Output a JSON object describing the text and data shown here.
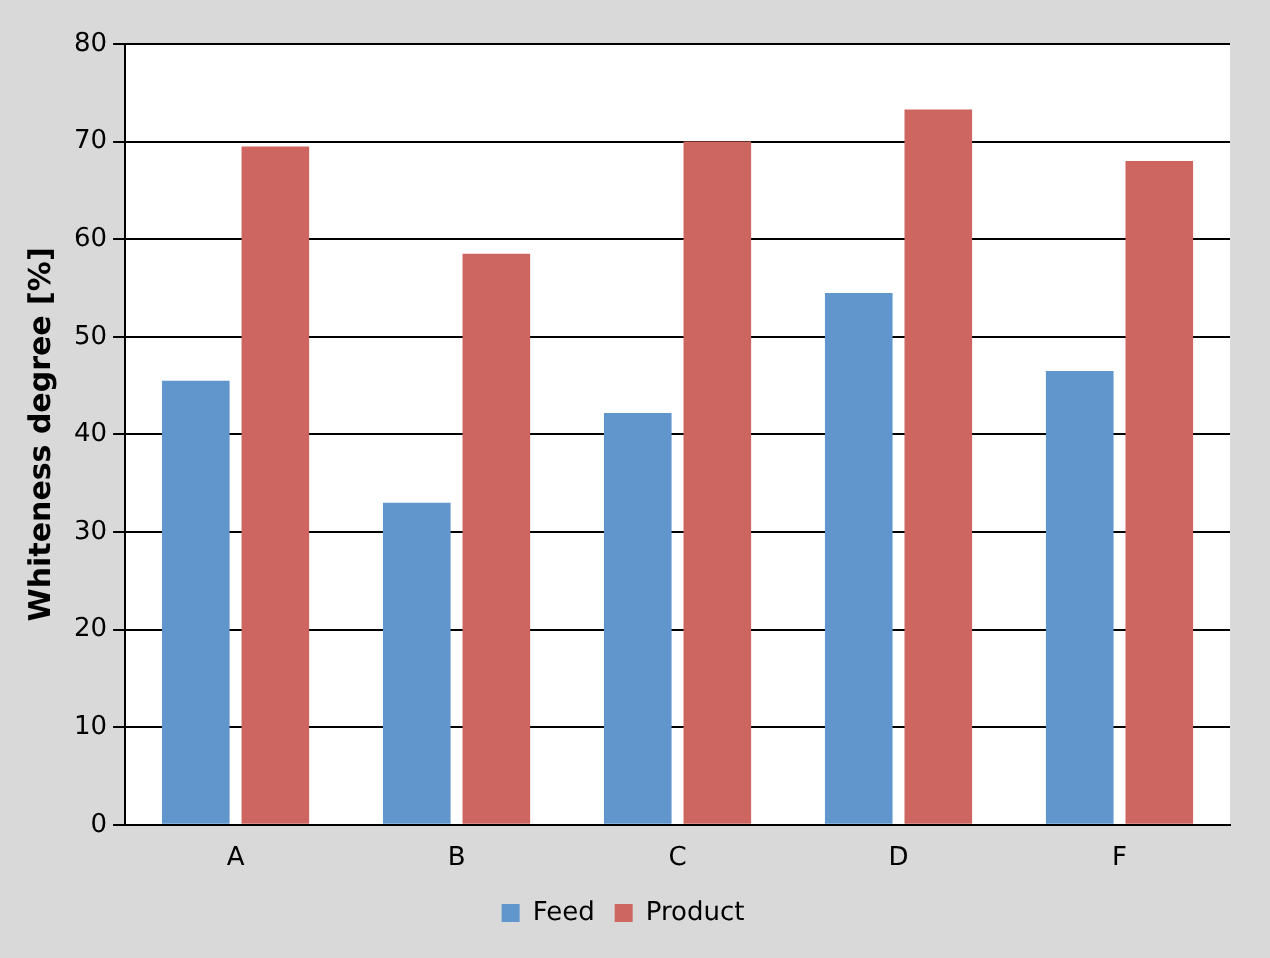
{
  "chart_data": {
    "type": "bar",
    "ylabel": "Whiteness degree [%]",
    "categories": [
      "A",
      "B",
      "C",
      "D",
      "F"
    ],
    "series": [
      {
        "name": "Feed",
        "color": "#6196cc",
        "values": [
          45.5,
          33,
          42.2,
          54.5,
          46.5
        ]
      },
      {
        "name": "Product",
        "color": "#cd6660",
        "values": [
          69.5,
          58.5,
          70,
          73.3,
          68
        ]
      }
    ],
    "ylim": [
      0,
      80
    ],
    "yticks": [
      0,
      10,
      20,
      30,
      40,
      50,
      60,
      70,
      80
    ],
    "grid": "y",
    "legend": "bottom"
  }
}
